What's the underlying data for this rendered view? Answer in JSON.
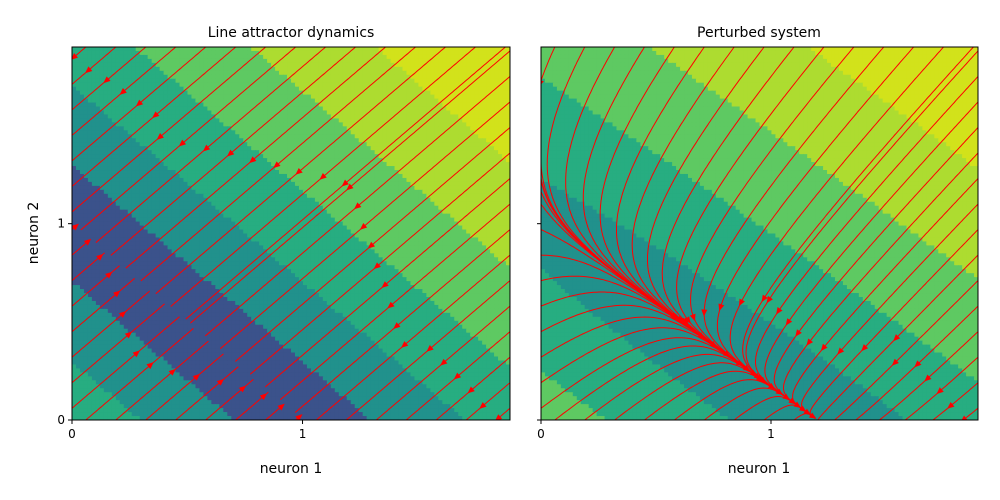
{
  "chart_data": [
    {
      "type": "streamplot",
      "title": "Line attractor dynamics",
      "xlabel": "neuron 1",
      "ylabel": "neuron 2",
      "xlim": [
        0,
        1.9
      ],
      "ylim": [
        0,
        1.9
      ],
      "xticks": [
        "0",
        "1"
      ],
      "yticks": [
        "0",
        "1"
      ],
      "background": "filled contours of flow speed",
      "attractor": "line x + y = 1",
      "contour_colors": [
        "#3b528b",
        "#21918c",
        "#27ad81",
        "#5ec962",
        "#addc30",
        "#d2e21b"
      ],
      "stream_color": "#ff0000"
    },
    {
      "type": "streamplot",
      "title": "Perturbed system",
      "xlabel": "neuron 1",
      "ylabel": "",
      "xlim": [
        0,
        1.9
      ],
      "ylim": [
        0,
        1.9
      ],
      "xticks": [
        "0",
        "1"
      ],
      "yticks": [
        "",
        ""
      ],
      "background": "filled contours of flow speed",
      "attractor": "fixed point near (1.25, 0)",
      "contour_colors": [
        "#21918c",
        "#27ad81",
        "#5ec962",
        "#addc30",
        "#d2e21b"
      ],
      "stream_color": "#ff0000"
    }
  ]
}
